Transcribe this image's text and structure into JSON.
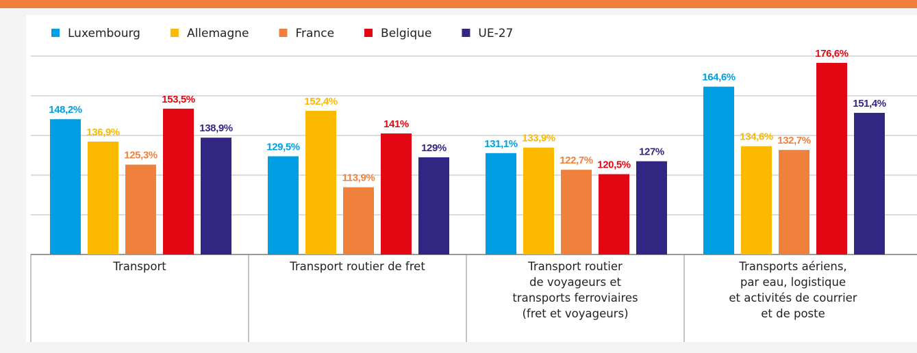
{
  "chart_data": {
    "type": "bar",
    "categories": [
      "Transport",
      "Transport routier de fret",
      "Transport routier\nde voyageurs et\ntransports ferroviaires\n(fret et voyageurs)",
      "Transports aériens,\npar eau, logistique\net activités de courrier\net de poste"
    ],
    "series": [
      {
        "name": "Luxembourg",
        "color": "#009fe3",
        "values": [
          148.2,
          129.5,
          131.1,
          164.6
        ],
        "value_labels": [
          "148,2%",
          "129,5%",
          "131,1%",
          "164,6%"
        ]
      },
      {
        "name": "Allemagne",
        "color": "#fbb900",
        "values": [
          136.9,
          152.4,
          133.9,
          134.6
        ],
        "value_labels": [
          "136,9%",
          "152,4%",
          "133,9%",
          "134,6%"
        ]
      },
      {
        "name": "France",
        "color": "#f0813d",
        "values": [
          125.3,
          113.9,
          122.7,
          132.7
        ],
        "value_labels": [
          "125,3%",
          "113,9%",
          "122,7%",
          "132,7%"
        ]
      },
      {
        "name": "Belgique",
        "color": "#e30613",
        "values": [
          153.5,
          141,
          120.5,
          176.6
        ],
        "value_labels": [
          "153,5%",
          "141%",
          "120,5%",
          "176,6%"
        ]
      },
      {
        "name": "UE-27",
        "color": "#312783",
        "values": [
          138.9,
          129,
          127,
          151.4
        ],
        "value_labels": [
          "138,9%",
          "129%",
          "127%",
          "151,4%"
        ]
      }
    ],
    "ylim": [
      80,
      180
    ],
    "yticks": [
      100,
      120,
      140,
      160,
      180
    ],
    "grid": true,
    "legend": "top"
  }
}
